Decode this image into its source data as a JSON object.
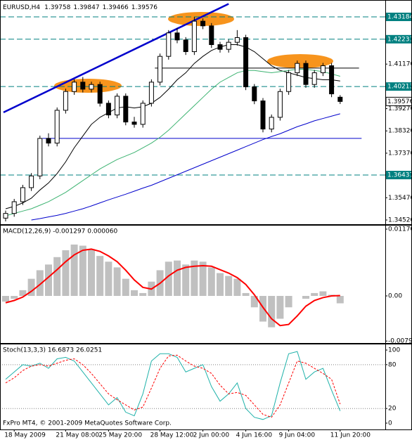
{
  "chart_data": [
    {
      "type": "candlestick",
      "title": "EURUSD,H4",
      "categories": [
        null,
        "18 May 2009",
        null,
        null,
        null,
        null,
        null,
        "21 May 08:00",
        null,
        null,
        null,
        null,
        "25 May 20:00",
        null,
        null,
        null,
        null,
        null,
        "28 May 12:00",
        null,
        null,
        null,
        null,
        "2 Jun 00:00",
        null,
        null,
        null,
        null,
        "4 Jun 16:00",
        null,
        null,
        null,
        null,
        "9 Jun 04:00",
        null,
        null,
        null,
        null,
        null,
        "11 Jun 20:00"
      ],
      "open": [
        1.346,
        1.348,
        1.353,
        1.359,
        1.364,
        1.38,
        1.378,
        1.392,
        1.4,
        1.404,
        1.401,
        1.403,
        1.395,
        1.39,
        1.398,
        1.387,
        1.386,
        1.395,
        1.404,
        1.415,
        1.425,
        1.422,
        1.417,
        1.43,
        1.428,
        1.42,
        1.418,
        1.421,
        1.423,
        1.402,
        1.396,
        1.384,
        1.389,
        1.4,
        1.408,
        1.412,
        1.403,
        1.408,
        1.411,
        1.39758
      ],
      "high": [
        1.3492,
        1.3542,
        1.3602,
        1.3652,
        1.3812,
        1.3822,
        1.3932,
        1.4012,
        1.4052,
        1.4062,
        1.4042,
        1.4042,
        1.3962,
        1.3992,
        1.3992,
        1.3892,
        1.3962,
        1.4052,
        1.4162,
        1.4262,
        1.4272,
        1.4232,
        1.4318,
        1.4312,
        1.4292,
        1.4212,
        1.4222,
        1.4262,
        1.4242,
        1.4032,
        1.3972,
        1.3902,
        1.4012,
        1.4092,
        1.4132,
        1.4132,
        1.4092,
        1.4122,
        1.4122,
        1.39847
      ],
      "low": [
        1.3446,
        1.3466,
        1.3516,
        1.3576,
        1.3626,
        1.3766,
        1.3766,
        1.3906,
        1.3986,
        1.3996,
        1.3996,
        1.3936,
        1.3886,
        1.3886,
        1.3856,
        1.3846,
        1.3846,
        1.3936,
        1.4026,
        1.4136,
        1.4206,
        1.4156,
        1.4156,
        1.4266,
        1.4186,
        1.4166,
        1.4166,
        1.4196,
        1.4006,
        1.3946,
        1.3826,
        1.3826,
        1.3876,
        1.3986,
        1.4066,
        1.4016,
        1.4016,
        1.4066,
        1.3976,
        1.39466
      ],
      "close": [
        1.348,
        1.353,
        1.359,
        1.364,
        1.38,
        1.378,
        1.392,
        1.4,
        1.404,
        1.401,
        1.403,
        1.395,
        1.39,
        1.398,
        1.387,
        1.386,
        1.395,
        1.404,
        1.415,
        1.425,
        1.422,
        1.417,
        1.43,
        1.428,
        1.42,
        1.418,
        1.421,
        1.423,
        1.402,
        1.396,
        1.384,
        1.389,
        1.4,
        1.408,
        1.412,
        1.403,
        1.408,
        1.411,
        1.399,
        1.39576
      ],
      "overlays": [
        {
          "color": "#000000",
          "values": [
            1.35,
            1.351,
            1.3525,
            1.3545,
            1.358,
            1.361,
            1.365,
            1.37,
            1.376,
            1.381,
            1.386,
            1.389,
            1.391,
            1.393,
            1.3935,
            1.393,
            1.3935,
            1.395,
            1.3975,
            1.401,
            1.405,
            1.408,
            1.412,
            1.415,
            1.4175,
            1.419,
            1.42,
            1.42,
            1.419,
            1.417,
            1.414,
            1.411,
            1.409,
            1.408,
            1.407,
            1.406,
            1.4055,
            1.405,
            1.405,
            1.4045
          ]
        },
        {
          "color": "#3cb371",
          "values": [
            1.347,
            1.348,
            1.349,
            1.35,
            1.3515,
            1.353,
            1.355,
            1.357,
            1.3595,
            1.362,
            1.3645,
            1.367,
            1.369,
            1.371,
            1.3725,
            1.374,
            1.376,
            1.378,
            1.3805,
            1.3835,
            1.387,
            1.3905,
            1.394,
            1.3975,
            1.401,
            1.404,
            1.406,
            1.408,
            1.409,
            1.409,
            1.4085,
            1.408,
            1.4085,
            1.409,
            1.4095,
            1.4095,
            1.409,
            1.4085,
            1.4075,
            1.4065
          ]
        },
        {
          "color": "#0000cc",
          "values": [
            null,
            null,
            null,
            1.3452,
            1.3458,
            1.3465,
            1.3472,
            1.348,
            1.349,
            1.35,
            1.3512,
            1.3525,
            1.3538,
            1.355,
            1.3562,
            1.3575,
            1.3588,
            1.36,
            1.3615,
            1.363,
            1.3645,
            1.366,
            1.3675,
            1.369,
            1.3705,
            1.372,
            1.3735,
            1.375,
            1.3765,
            1.378,
            1.3795,
            1.3808,
            1.382,
            1.3835,
            1.385,
            1.3862,
            1.3875,
            1.3885,
            1.3895,
            1.3905
          ]
        }
      ],
      "ylim": [
        1.3437,
        1.43754
      ],
      "yticks": [
        {
          "value": 1.4117,
          "label": "1.41170"
        },
        {
          "value": 1.3927,
          "label": "1.39270"
        },
        {
          "value": 1.3832,
          "label": "1.38320"
        },
        {
          "value": 1.3737,
          "label": "1.37370"
        },
        {
          "value": 1.3547,
          "label": "1.35470"
        },
        {
          "value": 1.3452,
          "label": "1.34520"
        }
      ],
      "levels": [
        1.43184,
        1.42231,
        1.40213,
        1.36437
      ],
      "level_color": "#008080",
      "current_price": 1.39576,
      "hlines": [
        {
          "price": 1.38,
          "from": 4.3,
          "to": 41.5,
          "color": "#0000cc"
        },
        {
          "price": 1.41,
          "from": 17.4,
          "to": 41.2,
          "color": "#000000"
        }
      ],
      "trendline": {
        "x": [
          -0.25,
          26
        ],
        "y": [
          1.3911,
          1.4374
        ],
        "color": "#0000cc"
      },
      "bull_color": "#ffffff",
      "bear_color": "#000000"
    },
    {
      "type": "macd",
      "title": "MACD(12,26,9) -0.001297 0.000060",
      "histogram": [
        -0.001,
        -0.0005,
        0.001,
        0.003,
        0.0045,
        0.0055,
        0.0068,
        0.008,
        0.009,
        0.0088,
        0.0082,
        0.007,
        0.006,
        0.005,
        0.003,
        0.001,
        0.0005,
        0.0025,
        0.0045,
        0.006,
        0.0062,
        0.0055,
        0.0062,
        0.006,
        0.005,
        0.004,
        0.0035,
        0.003,
        0.0005,
        -0.002,
        -0.0045,
        -0.0055,
        -0.004,
        -0.002,
        0.0,
        -0.0005,
        0.0005,
        0.0008,
        0.0002,
        -0.001297
      ],
      "signal": [
        -0.0012,
        -0.0008,
        -0.0002,
        0.0008,
        0.002,
        0.0033,
        0.0046,
        0.006,
        0.0072,
        0.008,
        0.0082,
        0.0078,
        0.007,
        0.006,
        0.0045,
        0.0028,
        0.0015,
        0.0012,
        0.0022,
        0.0035,
        0.0045,
        0.005,
        0.0052,
        0.0053,
        0.0052,
        0.0046,
        0.004,
        0.0032,
        0.002,
        0.0002,
        -0.002,
        -0.004,
        -0.0052,
        -0.005,
        -0.0035,
        -0.0018,
        -0.0008,
        -0.0003,
        0.0,
        6e-05
      ],
      "histogram_color": "#c0c0c0",
      "signal_color": "#ff0000",
      "ylim": [
        -0.00813,
        0.01207
      ],
      "yticks": [
        0.011702,
        {
          "value": 0,
          "label": "0.00"
        },
        -0.00791
      ]
    },
    {
      "type": "stochastic",
      "title": "Stoch(13,3,3) 16.6873 26.0251",
      "main": [
        60,
        70,
        80,
        78,
        82,
        75,
        88,
        90,
        85,
        70,
        55,
        40,
        25,
        35,
        15,
        10,
        40,
        85,
        95,
        95,
        90,
        70,
        75,
        80,
        50,
        30,
        40,
        55,
        20,
        8,
        5,
        10,
        55,
        95,
        98,
        60,
        70,
        75,
        45,
        16.6873
      ],
      "signal": [
        55,
        62,
        72,
        78,
        80,
        78,
        82,
        86,
        88,
        80,
        68,
        54,
        40,
        32,
        25,
        18,
        22,
        48,
        75,
        92,
        93,
        85,
        78,
        75,
        68,
        52,
        40,
        42,
        38,
        25,
        12,
        8,
        25,
        55,
        85,
        82,
        75,
        68,
        60,
        26.0251
      ],
      "main_color": "#20b2aa",
      "signal_color": "#ff0000",
      "ylim": [
        -7.7,
        105.8
      ],
      "yticks": [
        100,
        80,
        20,
        0
      ],
      "levels": [
        20,
        80
      ],
      "footer": "FxPro MT4, © 2001-2009 MetaQuotes Software Corp."
    }
  ]
}
